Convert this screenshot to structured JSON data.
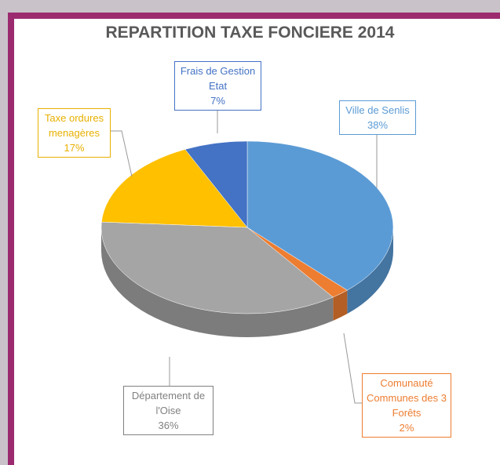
{
  "chart_data": {
    "type": "pie3d",
    "title": "REPARTITION TAXE FONCIERE 2014",
    "categories": [
      "Ville de Senlis",
      "Comunauté Communes des 3 Forêts",
      "Département de l'Oise",
      "Taxe ordures menagères",
      "Frais de Gestion Etat"
    ],
    "values": [
      38,
      2,
      36,
      17,
      7
    ],
    "value_labels": [
      "38%",
      "2%",
      "36%",
      "17%",
      "7%"
    ],
    "colors": [
      "#5b9bd5",
      "#ed7d31",
      "#a5a5a5",
      "#ffc000",
      "#4472c4"
    ]
  }
}
